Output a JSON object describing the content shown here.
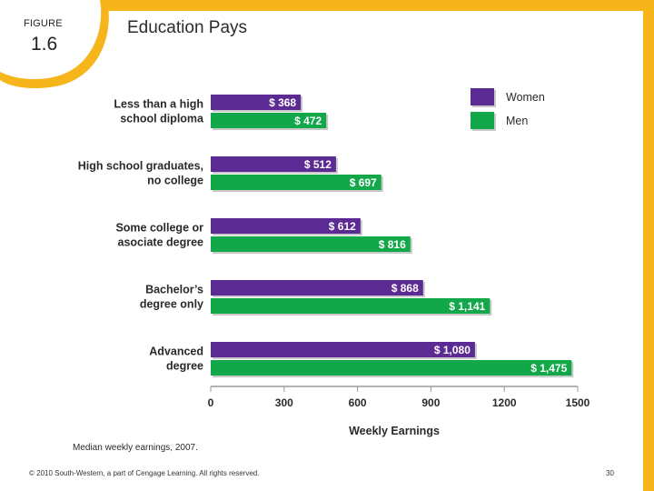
{
  "figure": {
    "label": "FIGURE",
    "number": "1.6"
  },
  "title": "Education Pays",
  "colors": {
    "frame": "#f7b51c",
    "women": "#5b2a93",
    "men": "#12a84a",
    "axis": "#9a9a9a"
  },
  "footer": {
    "copyright": "© 2010 South-Western, a part of Cengage Learning. All rights reserved.",
    "page_number": "30"
  },
  "chart_data": {
    "type": "bar",
    "orientation": "horizontal",
    "title": "Education Pays",
    "xlabel": "Weekly Earnings",
    "ylabel": "",
    "xlim": [
      0,
      1500
    ],
    "ticks": [
      {
        "value": 0,
        "label": "0"
      },
      {
        "value": 300,
        "label": "300"
      },
      {
        "value": 600,
        "label": "600"
      },
      {
        "value": 900,
        "label": "900"
      },
      {
        "value": 1200,
        "label": "1200"
      },
      {
        "value": 1500,
        "label": "1500"
      }
    ],
    "categories": [
      {
        "line1": "Less than a high",
        "line2": "school diploma"
      },
      {
        "line1": "High school graduates,",
        "line2": "no college"
      },
      {
        "line1": "Some college or",
        "line2": "asociate degree"
      },
      {
        "line1": "Bachelor’s",
        "line2": "degree only"
      },
      {
        "line1": "Advanced",
        "line2": "degree"
      }
    ],
    "series": [
      {
        "name": "Women",
        "values": [
          368,
          512,
          612,
          868,
          1080
        ],
        "labels": [
          "$ 368",
          "$ 512",
          "$ 612",
          "$ 868",
          "$ 1,080"
        ]
      },
      {
        "name": "Men",
        "values": [
          472,
          697,
          816,
          1141,
          1475
        ],
        "labels": [
          "$ 472",
          "$ 697",
          "$ 816",
          "$ 1,141",
          "$ 1,475"
        ]
      }
    ],
    "legend": [
      "Women",
      "Men"
    ],
    "legend_position": "top-right",
    "note": "Median weekly earnings, 2007."
  }
}
